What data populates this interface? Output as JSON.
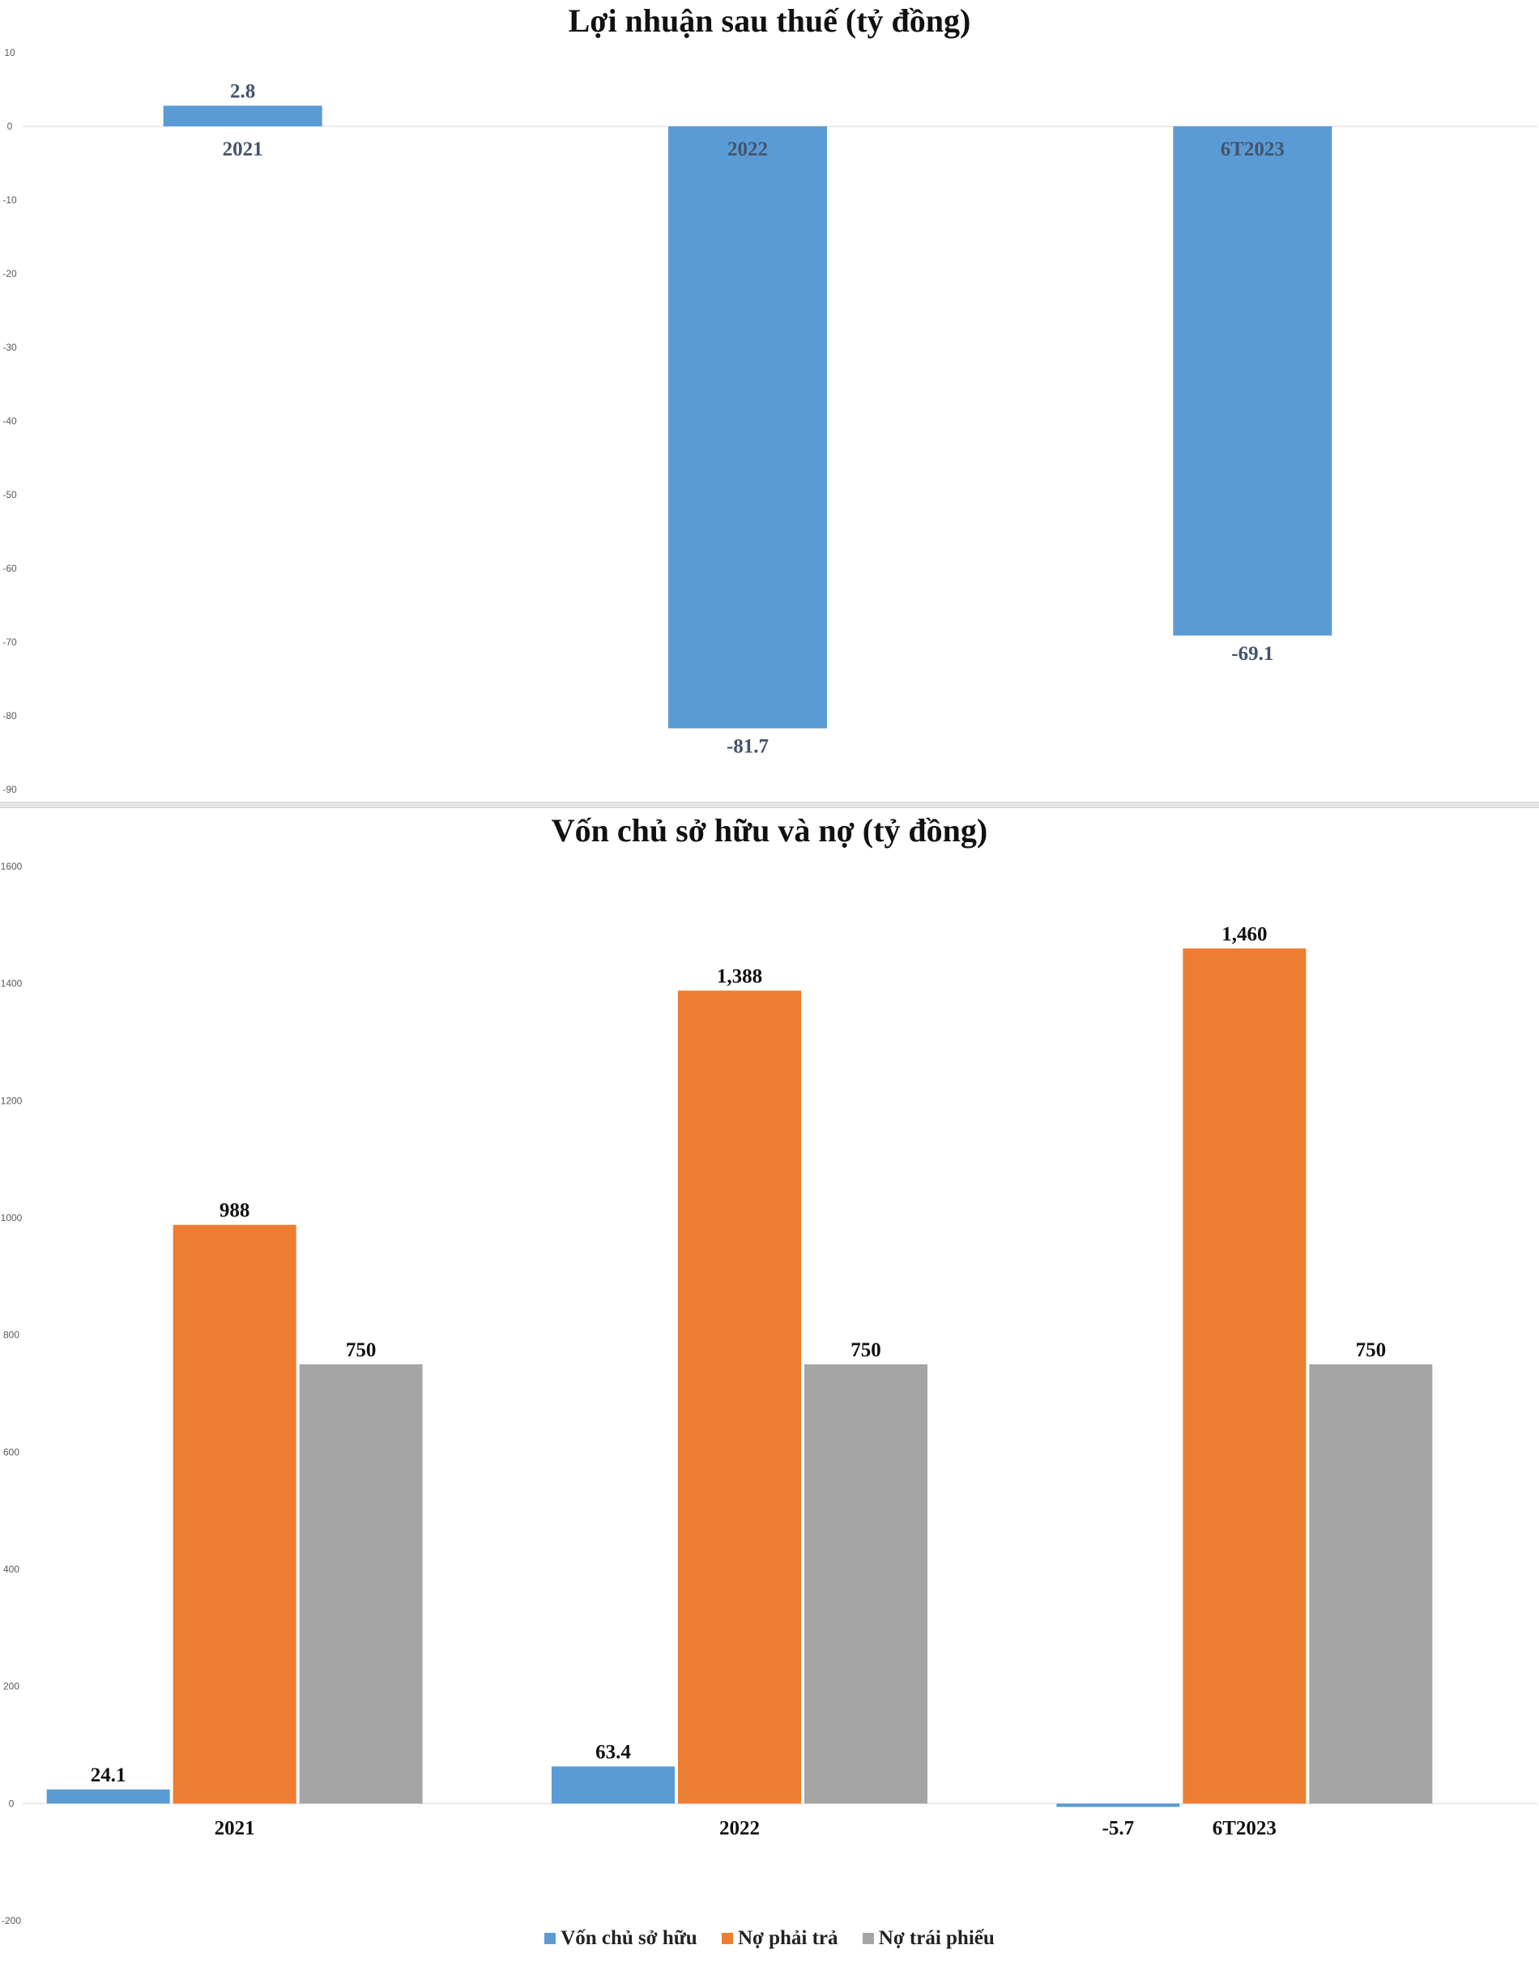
{
  "chart_data": [
    {
      "type": "bar",
      "title": "Lợi nhuận sau thuế (tỷ đồng)",
      "categories": [
        "2021",
        "2022",
        "6T2023"
      ],
      "series": [
        {
          "values": [
            2.8,
            -81.7,
            -69.1
          ],
          "labels": [
            "2.8",
            "-81.7",
            "-69.1"
          ],
          "color": "#5b9bd5"
        }
      ],
      "ylim": [
        -90,
        10
      ],
      "yticks": [
        "10",
        "0",
        "-10",
        "-20",
        "-30",
        "-40",
        "-50",
        "-60",
        "-70",
        "-80",
        "-90"
      ],
      "grid": false,
      "label_color": "#44546a"
    },
    {
      "type": "bar",
      "title": "Vốn chủ sở hữu và nợ (tỷ đồng)",
      "categories": [
        "2021",
        "2022",
        "6T2023"
      ],
      "series": [
        {
          "name": "Vốn chủ sở hữu",
          "values": [
            24.1,
            63.4,
            -5.7
          ],
          "labels": [
            "24.1",
            "63.4",
            "-5.7"
          ],
          "color": "#5b9bd5"
        },
        {
          "name": "Nợ phải trả",
          "values": [
            988,
            1388,
            1460
          ],
          "labels": [
            "988",
            "1,388",
            "1,460"
          ],
          "color": "#ed7d31"
        },
        {
          "name": "Nợ trái phiếu",
          "values": [
            750,
            750,
            750
          ],
          "labels": [
            "750",
            "750",
            "750"
          ],
          "color": "#a5a5a5"
        }
      ],
      "ylim": [
        -200,
        1600
      ],
      "yticks": [
        "1600",
        "1400",
        "1200",
        "1000",
        "800",
        "600",
        "400",
        "200",
        "0",
        "-200"
      ],
      "grid": false,
      "legend": "bottom",
      "label_color": "#111111"
    }
  ]
}
